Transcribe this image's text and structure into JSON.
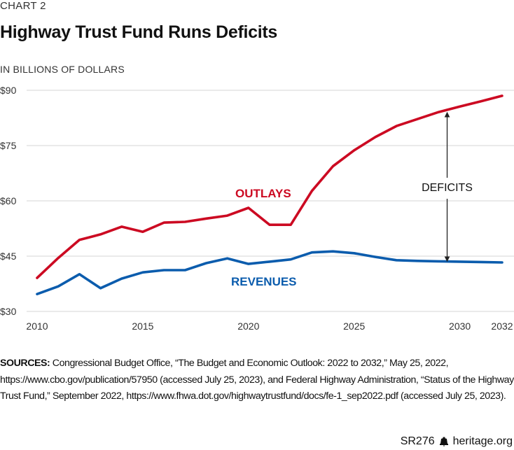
{
  "header": {
    "kicker": "CHART 2",
    "title": "Highway Trust Fund Runs Deficits",
    "unit_label": "IN BILLIONS OF DOLLARS"
  },
  "colors": {
    "outlays": "#CC0A22",
    "revenues": "#0B5CAD",
    "grid": "#e3e3e3",
    "annotation": "#222222"
  },
  "chart_data": {
    "type": "line",
    "title": "Highway Trust Fund Runs Deficits",
    "xlabel": "",
    "ylabel": "IN BILLIONS OF DOLLARS",
    "x": [
      2010,
      2011,
      2012,
      2013,
      2014,
      2015,
      2016,
      2017,
      2018,
      2019,
      2020,
      2021,
      2022,
      2023,
      2024,
      2025,
      2026,
      2027,
      2028,
      2029,
      2030,
      2031,
      2032
    ],
    "series": [
      {
        "name": "OUTLAYS",
        "values": [
          39.1,
          44.5,
          49.4,
          50.9,
          53.0,
          51.6,
          54.1,
          54.3,
          55.2,
          56.0,
          58.1,
          53.5,
          53.5,
          62.7,
          69.4,
          73.7,
          77.3,
          80.3,
          82.2,
          84.1,
          85.6,
          87.0,
          88.5
        ]
      },
      {
        "name": "REVENUES",
        "values": [
          34.7,
          36.8,
          40.1,
          36.3,
          38.9,
          40.6,
          41.2,
          41.2,
          43.1,
          44.4,
          42.9,
          43.5,
          44.1,
          46.0,
          46.3,
          45.8,
          44.8,
          43.9,
          43.7,
          43.6,
          43.5,
          43.4,
          43.3
        ]
      }
    ],
    "xlim": [
      2010,
      2032
    ],
    "ylim": [
      30,
      90
    ],
    "yticks": [
      30,
      45,
      60,
      75,
      90
    ],
    "ytick_labels": [
      "$30",
      "$45",
      "$60",
      "$75",
      "$90"
    ],
    "xticks": [
      2010,
      2015,
      2020,
      2025,
      2030,
      2032
    ],
    "xtick_labels": [
      "2010",
      "2015",
      "2020",
      "2025",
      "2030",
      "2032"
    ],
    "grid": true,
    "legend": "inline",
    "annotations": [
      {
        "text": "OUTLAYS",
        "series": "OUTLAYS"
      },
      {
        "text": "REVENUES",
        "series": "REVENUES"
      },
      {
        "text": "DEFICITS",
        "type": "double-arrow",
        "x": 2029.4,
        "from": 43.6,
        "to": 84.0
      }
    ]
  },
  "sources": {
    "label": "SOURCES:",
    "text": " Congressional Budget Office, “The Budget and Economic Outlook: 2022 to 2032,” May 25, 2022, https://www.cbo.gov/publication/57950 (accessed July 25, 2023), and Federal Highway Administration, “Status of the Highway Trust Fund,” September 2022, https://www.fhwa.dot.gov/highwaytrustfund/docs/fe-1_sep2022.pdf (accessed July 25, 2023)."
  },
  "footer": {
    "report_id": "SR276",
    "icon": "liberty-bell-icon",
    "site": "heritage.org"
  }
}
